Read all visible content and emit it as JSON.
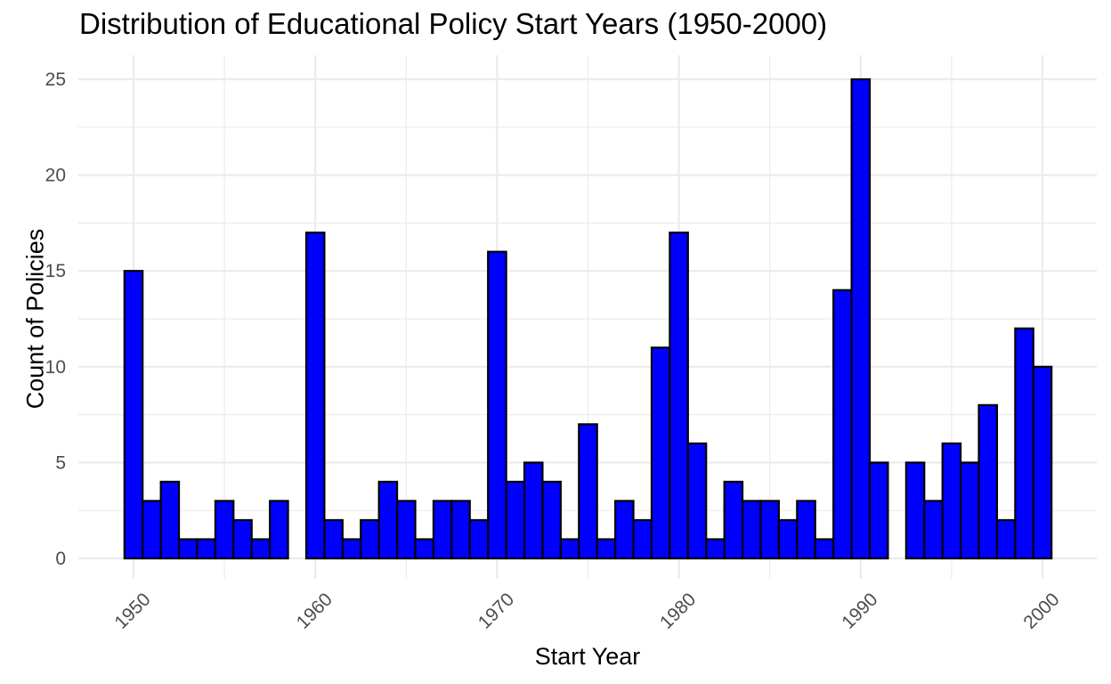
{
  "chart_data": {
    "type": "bar",
    "title": "Distribution of Educational Policy Start Years (1950-2000)",
    "xlabel": "Start Year",
    "ylabel": "Count of Policies",
    "x": [
      1950,
      1951,
      1952,
      1953,
      1954,
      1955,
      1956,
      1957,
      1958,
      1959,
      1960,
      1961,
      1962,
      1963,
      1964,
      1965,
      1966,
      1967,
      1968,
      1969,
      1970,
      1971,
      1972,
      1973,
      1974,
      1975,
      1976,
      1977,
      1978,
      1979,
      1980,
      1981,
      1982,
      1983,
      1984,
      1985,
      1986,
      1987,
      1988,
      1989,
      1990,
      1991,
      1992,
      1993,
      1994,
      1995,
      1996,
      1997,
      1998,
      1999,
      2000
    ],
    "values": [
      15,
      3,
      4,
      1,
      1,
      3,
      2,
      1,
      3,
      0,
      17,
      2,
      1,
      2,
      4,
      3,
      1,
      3,
      3,
      2,
      16,
      4,
      5,
      4,
      1,
      7,
      1,
      3,
      2,
      11,
      17,
      6,
      1,
      4,
      3,
      3,
      2,
      3,
      1,
      14,
      25,
      5,
      0,
      5,
      3,
      6,
      5,
      8,
      2,
      12,
      10
    ],
    "x_ticks": [
      "1950",
      "1960",
      "1970",
      "1980",
      "1990",
      "2000"
    ],
    "y_ticks": [
      "0",
      "5",
      "10",
      "15",
      "20",
      "25"
    ],
    "xlim": [
      1950,
      2000
    ],
    "ylim": [
      0,
      25
    ],
    "grid": true,
    "bar_fill": "#0000ff",
    "bar_edge": "#000000",
    "grid_color": "#ebebeb"
  }
}
